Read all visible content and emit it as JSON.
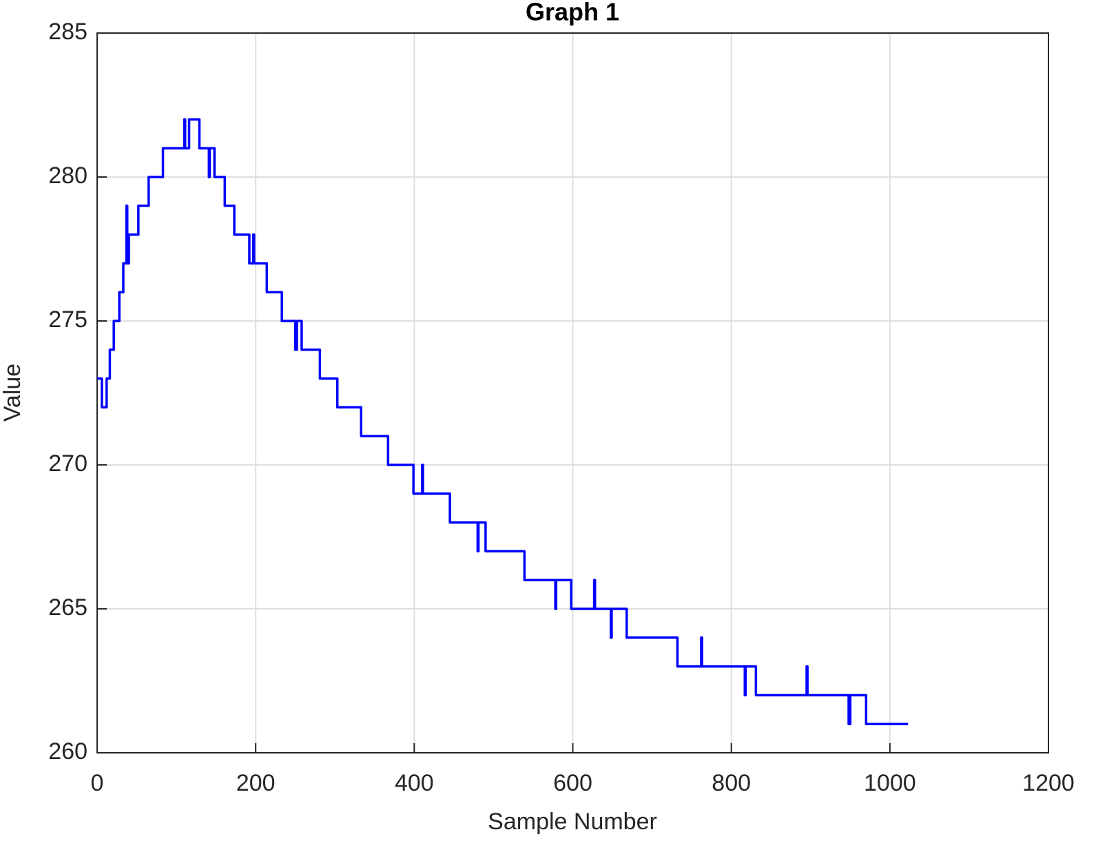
{
  "chart_data": {
    "type": "line",
    "title": "Graph  1",
    "x_label": "Sample Number",
    "y_label": "Value",
    "xlim": [
      0,
      1200
    ],
    "xticks": [
      0,
      200,
      400,
      600,
      800,
      1000,
      1200
    ],
    "ylim": [
      260,
      285
    ],
    "yticks": [
      260,
      265,
      270,
      275,
      280,
      285
    ],
    "grid": true,
    "series": [
      {
        "color": "#0000ff",
        "x": [
          0,
          6,
          6,
          12,
          12,
          16,
          16,
          21,
          21,
          28,
          28,
          33,
          33,
          37,
          37,
          38,
          38,
          40,
          40,
          52,
          52,
          65,
          65,
          83,
          83,
          110,
          110,
          111,
          111,
          116,
          116,
          129,
          129,
          141,
          141,
          142,
          142,
          148,
          148,
          161,
          161,
          173,
          173,
          192,
          192,
          197,
          197,
          198,
          198,
          214,
          214,
          233,
          233,
          250,
          250,
          252,
          252,
          258,
          258,
          281,
          281,
          303,
          303,
          333,
          333,
          367,
          367,
          399,
          399,
          410,
          410,
          411,
          411,
          445,
          445,
          480,
          480,
          481,
          481,
          490,
          490,
          539,
          539,
          578,
          578,
          579,
          579,
          598,
          598,
          627,
          627,
          628,
          628,
          648,
          648,
          649,
          649,
          668,
          668,
          732,
          732,
          762,
          762,
          763,
          763,
          817,
          817,
          818,
          818,
          831,
          831,
          895,
          895,
          896,
          896,
          948,
          948,
          950,
          950,
          970,
          970,
          1023
        ],
        "values": [
          273,
          273,
          272,
          272,
          273,
          273,
          274,
          274,
          275,
          275,
          276,
          276,
          277,
          277,
          279,
          279,
          277,
          277,
          278,
          278,
          279,
          279,
          280,
          280,
          281,
          281,
          282,
          282,
          281,
          281,
          282,
          282,
          281,
          281,
          280,
          280,
          281,
          281,
          280,
          280,
          279,
          279,
          278,
          278,
          277,
          277,
          278,
          278,
          277,
          277,
          276,
          276,
          275,
          275,
          274,
          274,
          275,
          275,
          274,
          274,
          273,
          273,
          272,
          272,
          271,
          271,
          270,
          270,
          269,
          269,
          270,
          270,
          269,
          269,
          268,
          268,
          267,
          267,
          268,
          268,
          267,
          267,
          266,
          266,
          265,
          265,
          266,
          266,
          265,
          265,
          266,
          266,
          265,
          265,
          264,
          264,
          265,
          265,
          264,
          264,
          263,
          263,
          264,
          264,
          263,
          263,
          262,
          262,
          263,
          263,
          262,
          262,
          263,
          263,
          262,
          262,
          261,
          261,
          262,
          262,
          261,
          261
        ]
      }
    ]
  }
}
